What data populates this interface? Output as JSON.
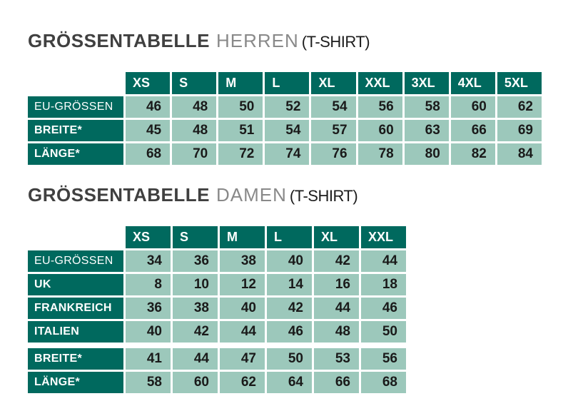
{
  "colors": {
    "header_bg": "#00695E",
    "cell_bg": "#9CC8BB",
    "title_main": "#404040",
    "title_variant": "#898989",
    "title_suffix": "#1C1C1C",
    "cell_text": "#1A1A1A",
    "header_text": "#FFFFFF"
  },
  "tables": [
    {
      "id": "herren",
      "title": {
        "main": "GRÖSSENTABELLE",
        "variant": "HERREN",
        "suffix": "(T-SHIRT)"
      },
      "columns": [
        "XS",
        "S",
        "M",
        "L",
        "XL",
        "XXL",
        "3XL",
        "4XL",
        "5XL"
      ],
      "rows": [
        {
          "label": "EU-GRÖSSEN",
          "bold": false,
          "gap_before": false,
          "values": [
            "46",
            "48",
            "50",
            "52",
            "54",
            "56",
            "58",
            "60",
            "62"
          ]
        },
        {
          "label": "BREITE*",
          "bold": true,
          "gap_before": false,
          "values": [
            "45",
            "48",
            "51",
            "54",
            "57",
            "60",
            "63",
            "66",
            "69"
          ]
        },
        {
          "label": "LÄNGE*",
          "bold": true,
          "gap_before": false,
          "values": [
            "68",
            "70",
            "72",
            "74",
            "76",
            "78",
            "80",
            "82",
            "84"
          ]
        }
      ]
    },
    {
      "id": "damen",
      "title": {
        "main": "GRÖSSENTABELLE",
        "variant": "DAMEN",
        "suffix": "(T-SHIRT)"
      },
      "columns": [
        "XS",
        "S",
        "M",
        "L",
        "XL",
        "XXL"
      ],
      "rows": [
        {
          "label": "EU-GRÖSSEN",
          "bold": false,
          "gap_before": false,
          "values": [
            "34",
            "36",
            "38",
            "40",
            "42",
            "44"
          ]
        },
        {
          "label": "UK",
          "bold": true,
          "gap_before": false,
          "values": [
            "8",
            "10",
            "12",
            "14",
            "16",
            "18"
          ]
        },
        {
          "label": "FRANKREICH",
          "bold": true,
          "gap_before": false,
          "values": [
            "36",
            "38",
            "40",
            "42",
            "44",
            "46"
          ]
        },
        {
          "label": "ITALIEN",
          "bold": true,
          "gap_before": false,
          "values": [
            "40",
            "42",
            "44",
            "46",
            "48",
            "50"
          ]
        },
        {
          "label": "BREITE*",
          "bold": true,
          "gap_before": true,
          "values": [
            "41",
            "44",
            "47",
            "50",
            "53",
            "56"
          ]
        },
        {
          "label": "LÄNGE*",
          "bold": true,
          "gap_before": false,
          "values": [
            "58",
            "60",
            "62",
            "64",
            "66",
            "68"
          ]
        }
      ]
    }
  ]
}
